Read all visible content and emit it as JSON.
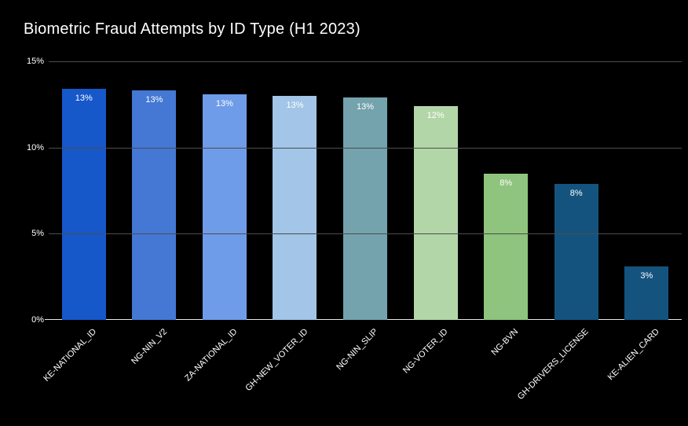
{
  "title": "Biometric Fraud Attempts by ID Type (H1 2023)",
  "colors": {
    "background": "#000000",
    "title_text": "#ffffff",
    "axis_text": "#ffffff",
    "gridline": "#4d4d4d",
    "baseline": "#e8e8e8",
    "bar_label_text": "#ffffff"
  },
  "chart_data": {
    "type": "bar",
    "title": "Biometric Fraud Attempts by ID Type (H1 2023)",
    "categories": [
      "KE-NATIONAL_ID",
      "NG-NIN_V2",
      "ZA-NATIONAL_ID",
      "GH-NEW_VOTER_ID",
      "NG-NIN_SLIP",
      "NG-VOTER_ID",
      "NG-BVN",
      "GH-DRIVERS_LICENSE",
      "KE-ALIEN_CARD"
    ],
    "values": [
      13.4,
      13.3,
      13.1,
      13.0,
      12.9,
      12.4,
      8.5,
      7.9,
      3.1
    ],
    "data_labels": [
      "13%",
      "13%",
      "13%",
      "13%",
      "13%",
      "12%",
      "8%",
      "8%",
      "3%"
    ],
    "bar_colors": [
      "#1657c9",
      "#4478d4",
      "#6f9ce8",
      "#a2c5e8",
      "#74a3ad",
      "#b3d6a9",
      "#8ec47e",
      "#15537f",
      "#15537f"
    ],
    "xlabel": "",
    "ylabel": "",
    "ylim": [
      0,
      15
    ],
    "yticks": [
      0,
      5,
      10,
      15
    ],
    "ytick_labels": [
      "0%",
      "5%",
      "10%",
      "15%"
    ],
    "grid": true,
    "legend": "none",
    "x_tick_rotation_deg": 45
  }
}
